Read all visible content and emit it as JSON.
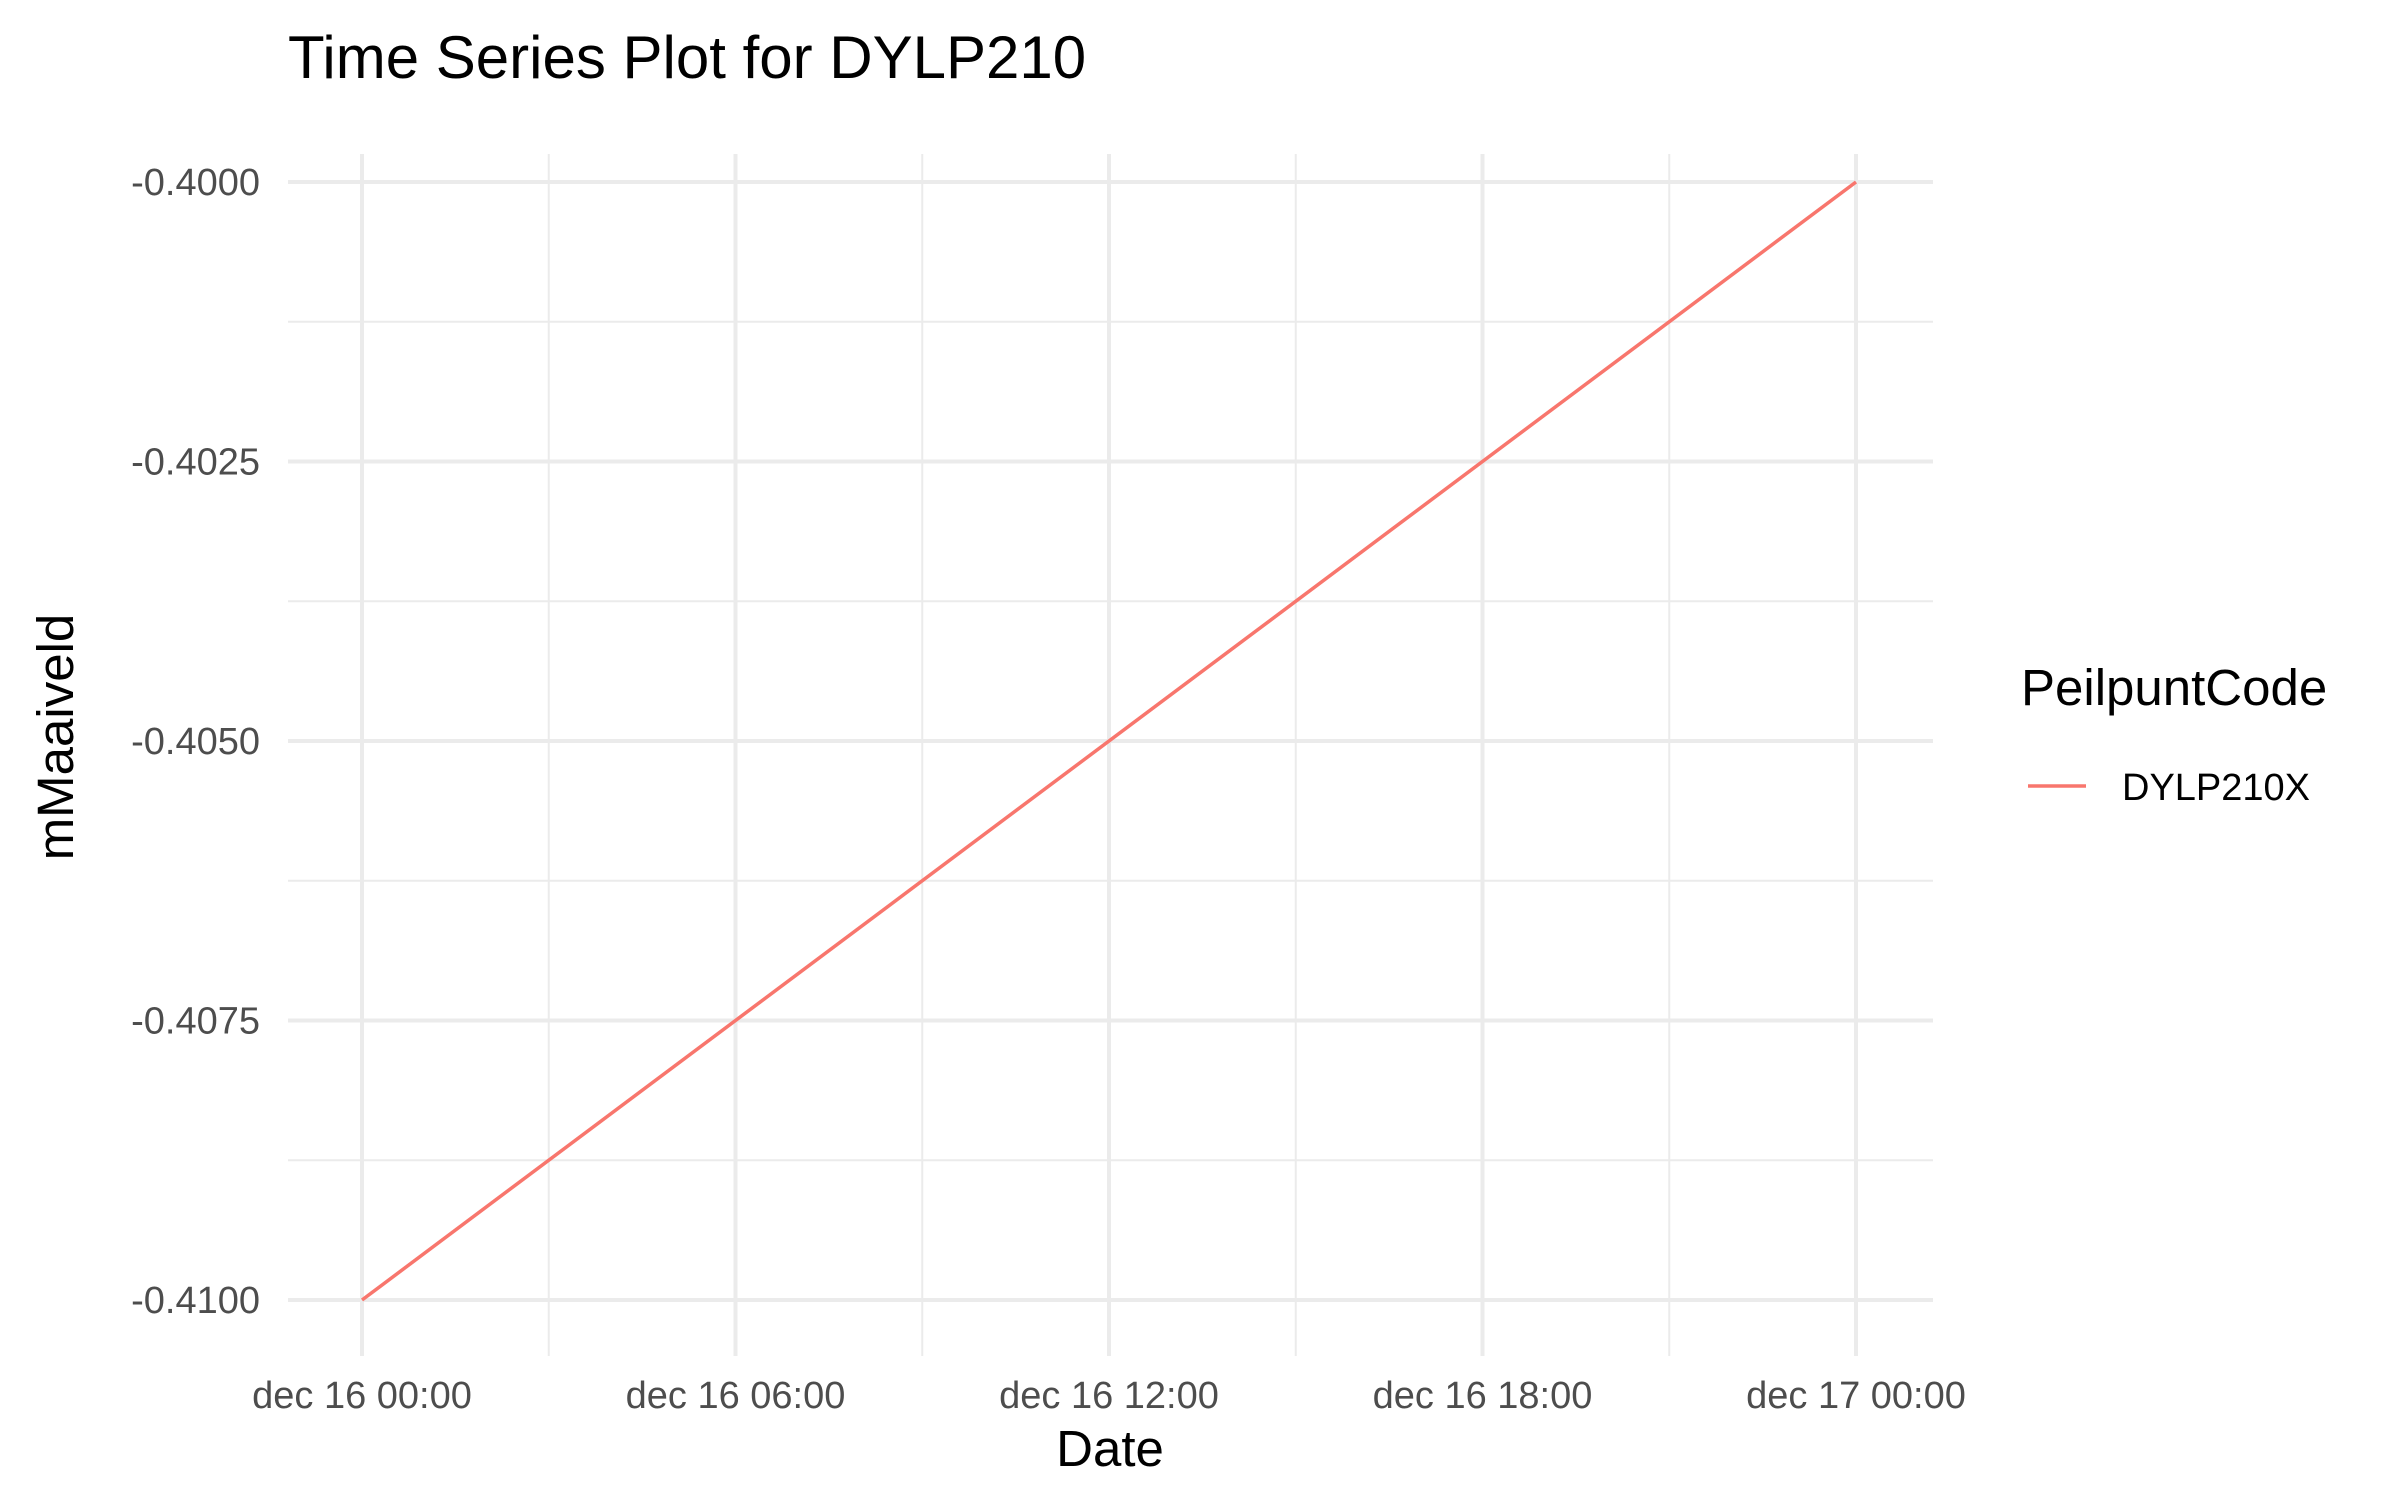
{
  "chart_data": {
    "type": "line",
    "title": "Time Series Plot for DYLP210",
    "xlabel": "Date",
    "ylabel": "mMaaiveld",
    "x_ticks": [
      "dec 16 00:00",
      "dec 16 06:00",
      "dec 16 12:00",
      "dec 16 18:00",
      "dec 17 00:00"
    ],
    "xlim": [
      "dec 16 00:00",
      "dec 17 00:00"
    ],
    "y_ticks": [
      "-0.4000",
      "-0.4025",
      "-0.4050",
      "-0.4075",
      "-0.4100"
    ],
    "ylim": [
      -0.41,
      -0.4
    ],
    "grid": true,
    "legend": {
      "title": "PeilpuntCode",
      "position": "right"
    },
    "series": [
      {
        "name": "DYLP210X",
        "color": "#F8766D",
        "x": [
          "dec 16 00:00",
          "dec 17 00:00"
        ],
        "y": [
          -0.41,
          -0.4
        ]
      }
    ]
  }
}
